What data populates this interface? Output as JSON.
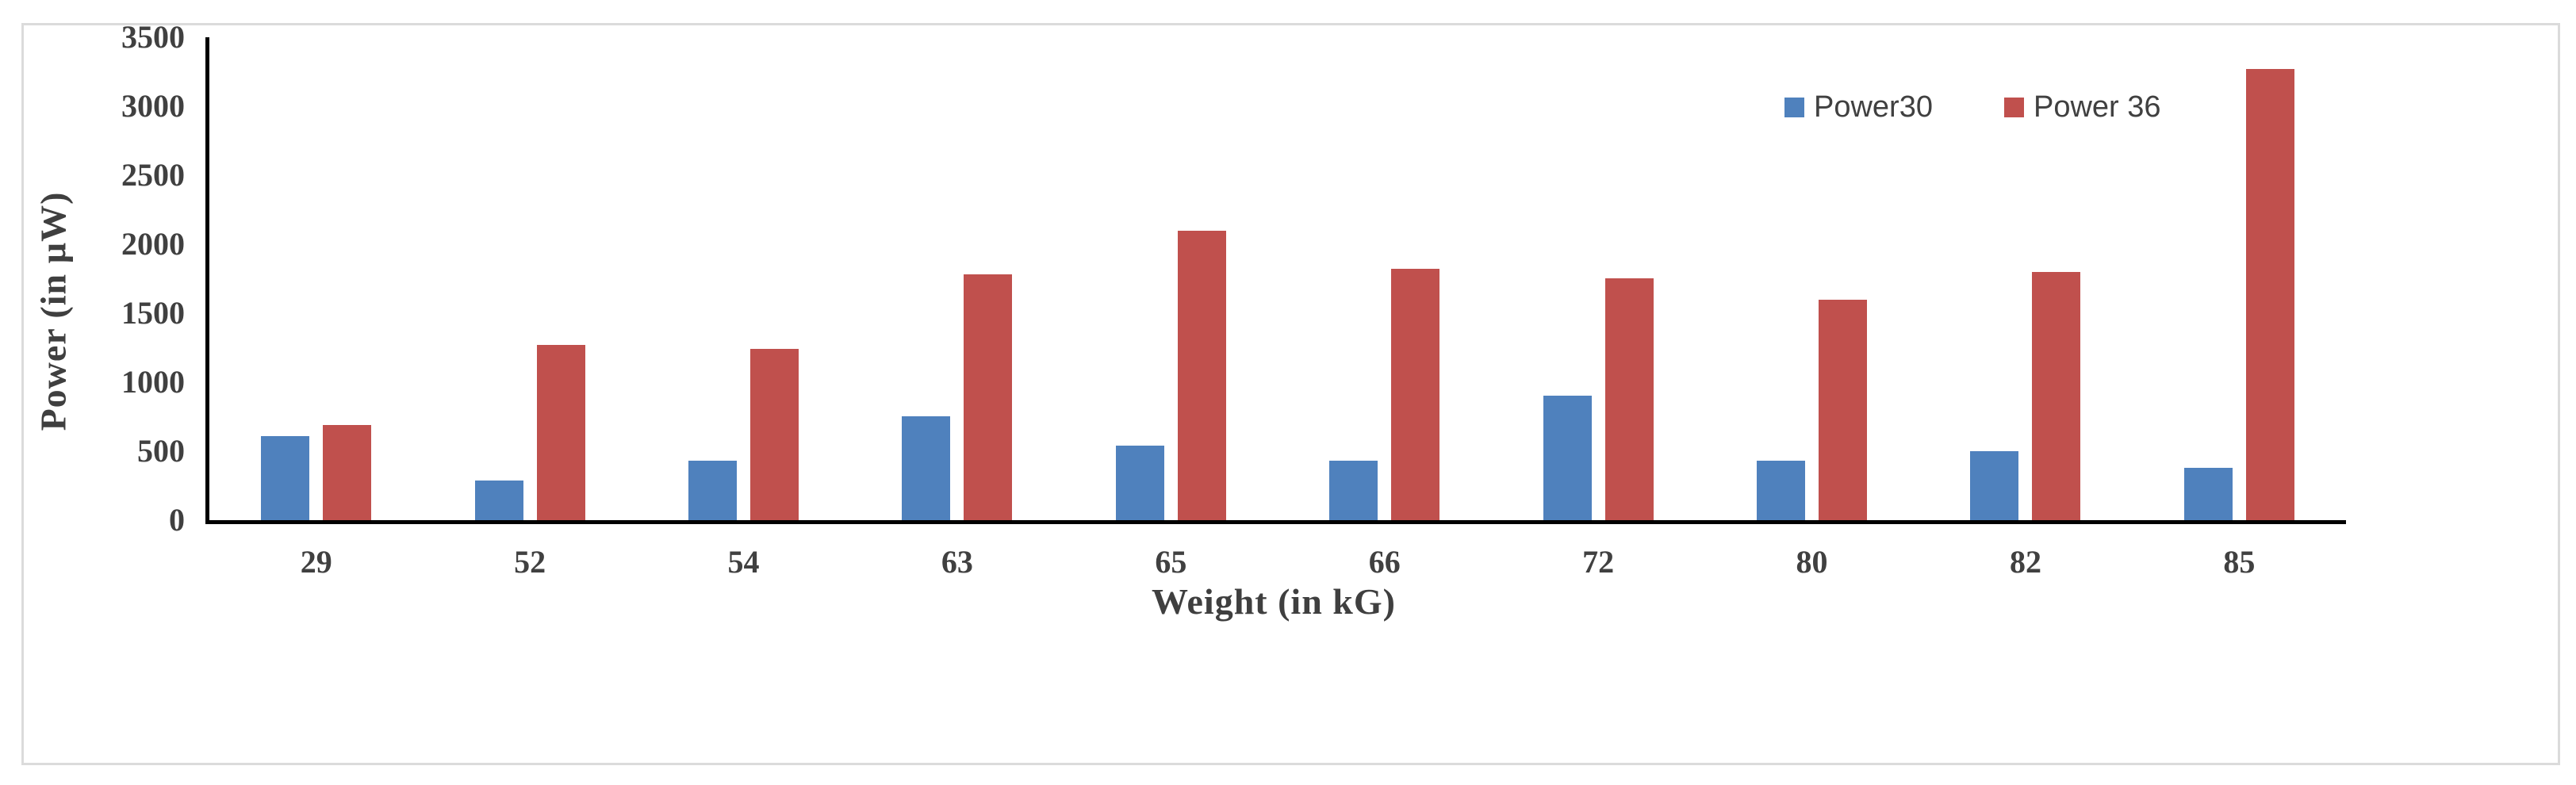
{
  "chart": {
    "y_axis_title": "Power (in µW)",
    "x_axis_title": "Weight (in kG)"
  },
  "chart_data": {
    "type": "bar",
    "categories": [
      "29",
      "52",
      "54",
      "63",
      "65",
      "66",
      "72",
      "80",
      "82",
      "85"
    ],
    "series": [
      {
        "name": "Power30",
        "color": "#4F81BD",
        "values": [
          610,
          290,
          430,
          750,
          540,
          430,
          900,
          430,
          500,
          380
        ]
      },
      {
        "name": "Power 36",
        "color": "#C0504D",
        "values": [
          690,
          1270,
          1240,
          1780,
          2100,
          1820,
          1750,
          1600,
          1800,
          3270
        ]
      }
    ],
    "title": "",
    "xlabel": "Weight (in kG)",
    "ylabel": "Power (in µW)",
    "ylim": [
      0,
      3500
    ],
    "yticks": [
      0,
      500,
      1000,
      1500,
      2000,
      2500,
      3000,
      3500
    ],
    "grid": false,
    "legend_position": "top-right",
    "axis_line_color": "#000000",
    "text_color": "#404040",
    "frame_border_color": "#DBDBDB"
  }
}
